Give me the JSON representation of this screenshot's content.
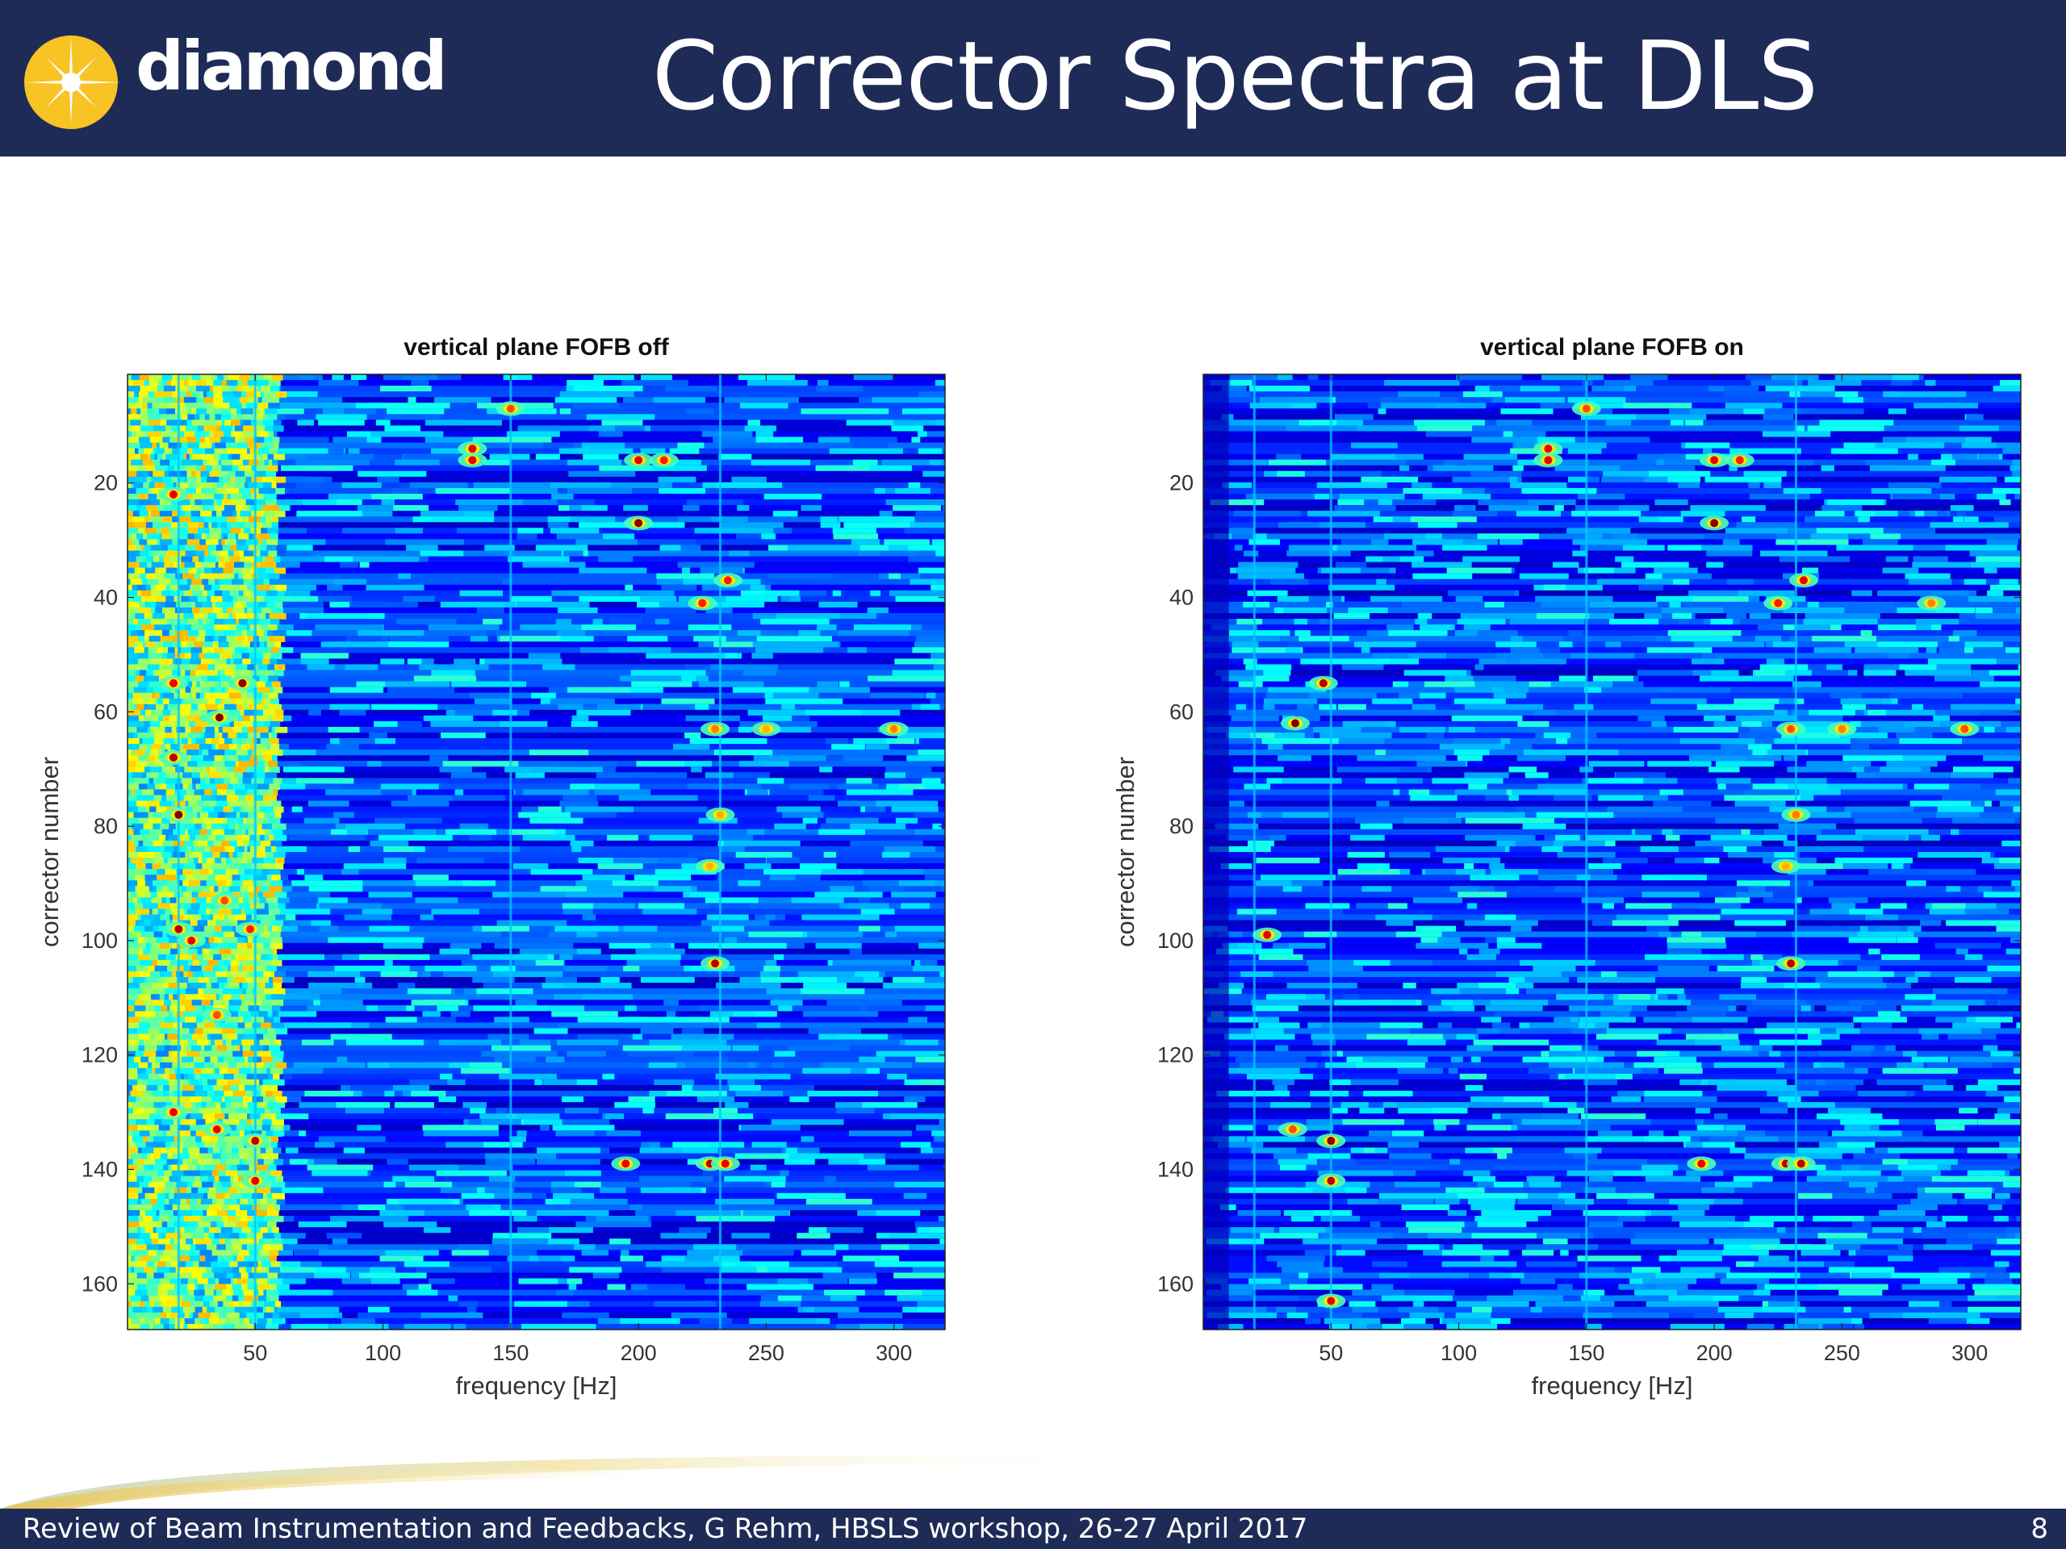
{
  "slide": {
    "title": "Corrector Spectra at DLS",
    "logo_text": "diamond",
    "footer_text": "Review of Beam Instrumentation and Feedbacks, G Rehm, HBSLS workshop, 26-27 April 2017",
    "page_number": "8"
  },
  "colors": {
    "header_bg": "#1f2b57",
    "logo_sun": "#f7c325",
    "colormap": [
      "#00008f",
      "#0000ff",
      "#0080ff",
      "#00ffff",
      "#80ff80",
      "#ffff00",
      "#ff8000",
      "#ff0000",
      "#800000"
    ]
  },
  "chart_data": [
    {
      "type": "heatmap",
      "title": "vertical plane FOFB off",
      "xlabel": "frequency [Hz]",
      "ylabel": "corrector number",
      "xlim": [
        0,
        320
      ],
      "ylim": [
        1,
        168
      ],
      "y_reversed": true,
      "xticks": [
        50,
        100,
        150,
        200,
        250,
        300
      ],
      "yticks": [
        20,
        40,
        60,
        80,
        100,
        120,
        140,
        160
      ],
      "colormap": "jet",
      "low_freq_band_active": true,
      "hotspots": [
        {
          "x": 20,
          "y": 78,
          "level": 1.0
        },
        {
          "x": 20,
          "y": 98,
          "level": 0.95
        },
        {
          "x": 18,
          "y": 22,
          "level": 0.9
        },
        {
          "x": 18,
          "y": 55,
          "level": 0.9
        },
        {
          "x": 18,
          "y": 68,
          "level": 0.95
        },
        {
          "x": 18,
          "y": 130,
          "level": 0.9
        },
        {
          "x": 25,
          "y": 100,
          "level": 0.9
        },
        {
          "x": 36,
          "y": 61,
          "level": 1.0
        },
        {
          "x": 35,
          "y": 133,
          "level": 0.9
        },
        {
          "x": 35,
          "y": 113,
          "level": 0.8
        },
        {
          "x": 38,
          "y": 93,
          "level": 0.8
        },
        {
          "x": 45,
          "y": 55,
          "level": 1.0
        },
        {
          "x": 48,
          "y": 98,
          "level": 0.85
        },
        {
          "x": 50,
          "y": 135,
          "level": 0.95
        },
        {
          "x": 50,
          "y": 142,
          "level": 0.9
        },
        {
          "x": 135,
          "y": 14,
          "level": 0.9
        },
        {
          "x": 135,
          "y": 16,
          "level": 0.9
        },
        {
          "x": 150,
          "y": 7,
          "level": 0.8
        },
        {
          "x": 200,
          "y": 27,
          "level": 1.0
        },
        {
          "x": 200,
          "y": 16,
          "level": 0.9
        },
        {
          "x": 210,
          "y": 16,
          "level": 0.85
        },
        {
          "x": 195,
          "y": 139,
          "level": 0.9
        },
        {
          "x": 225,
          "y": 41,
          "level": 0.85
        },
        {
          "x": 235,
          "y": 37,
          "level": 0.85
        },
        {
          "x": 230,
          "y": 104,
          "level": 0.95
        },
        {
          "x": 228,
          "y": 139,
          "level": 0.95
        },
        {
          "x": 234,
          "y": 139,
          "level": 0.9
        },
        {
          "x": 230,
          "y": 63,
          "level": 0.75
        },
        {
          "x": 300,
          "y": 63,
          "level": 0.75
        },
        {
          "x": 250,
          "y": 63,
          "level": 0.7
        },
        {
          "x": 232,
          "y": 78,
          "level": 0.7
        },
        {
          "x": 228,
          "y": 87,
          "level": 0.7
        }
      ]
    },
    {
      "type": "heatmap",
      "title": "vertical plane FOFB on",
      "xlabel": "frequency [Hz]",
      "ylabel": "corrector number",
      "xlim": [
        0,
        320
      ],
      "ylim": [
        1,
        168
      ],
      "y_reversed": true,
      "xticks": [
        50,
        100,
        150,
        200,
        250,
        300
      ],
      "yticks": [
        20,
        40,
        60,
        80,
        100,
        120,
        140,
        160
      ],
      "colormap": "jet",
      "low_freq_band_active": false,
      "hotspots": [
        {
          "x": 50,
          "y": 135,
          "level": 1.0
        },
        {
          "x": 50,
          "y": 142,
          "level": 0.95
        },
        {
          "x": 50,
          "y": 163,
          "level": 0.9
        },
        {
          "x": 36,
          "y": 62,
          "level": 1.0
        },
        {
          "x": 47,
          "y": 55,
          "level": 0.95
        },
        {
          "x": 25,
          "y": 99,
          "level": 0.9
        },
        {
          "x": 35,
          "y": 133,
          "level": 0.8
        },
        {
          "x": 135,
          "y": 14,
          "level": 0.9
        },
        {
          "x": 135,
          "y": 16,
          "level": 0.9
        },
        {
          "x": 150,
          "y": 7,
          "level": 0.8
        },
        {
          "x": 200,
          "y": 27,
          "level": 1.0
        },
        {
          "x": 200,
          "y": 16,
          "level": 0.9
        },
        {
          "x": 210,
          "y": 16,
          "level": 0.85
        },
        {
          "x": 195,
          "y": 139,
          "level": 0.9
        },
        {
          "x": 225,
          "y": 41,
          "level": 0.85
        },
        {
          "x": 235,
          "y": 37,
          "level": 0.9
        },
        {
          "x": 230,
          "y": 104,
          "level": 0.95
        },
        {
          "x": 228,
          "y": 139,
          "level": 0.95
        },
        {
          "x": 234,
          "y": 139,
          "level": 0.95
        },
        {
          "x": 230,
          "y": 63,
          "level": 0.8
        },
        {
          "x": 298,
          "y": 63,
          "level": 0.8
        },
        {
          "x": 250,
          "y": 63,
          "level": 0.75
        },
        {
          "x": 232,
          "y": 78,
          "level": 0.75
        },
        {
          "x": 228,
          "y": 87,
          "level": 0.7
        },
        {
          "x": 285,
          "y": 41,
          "level": 0.75
        }
      ]
    }
  ]
}
